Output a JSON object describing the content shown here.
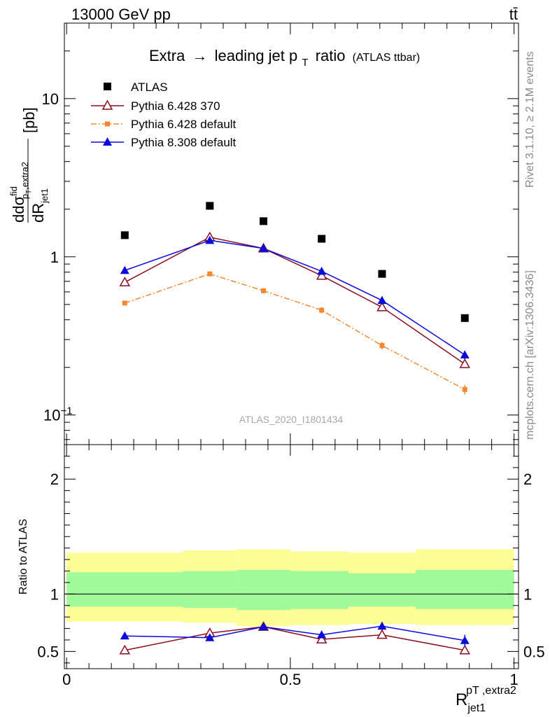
{
  "header": {
    "left": "13000 GeV pp",
    "right": "tt̄"
  },
  "side_labels": {
    "top": "Rivet 3.1.10, ≥ 2.1M events",
    "bottom": "mcplots.cern.ch [arXiv:1306.3436]"
  },
  "watermark": "ATLAS_2020_I1801434",
  "chart_data": [
    {
      "type": "scatter",
      "title": "Extra → leading jet pT ratio",
      "title_parts": {
        "main": "Extra",
        "arrow": "→",
        "mid": "leading jet p",
        "sub": "T",
        "end": "ratio"
      },
      "subtitle": "(ATLAS ttbar)",
      "ylabel_parts": {
        "d1": "d",
        "sigma": "dσ",
        "sup": "fid",
        "sub1": "p",
        "sub2": "T",
        "sub3": ",extra2",
        "denom": "dR",
        "denom_sub": "jet1",
        "unit": "[pb]"
      },
      "yscale": "log",
      "ylim": [
        0.065,
        30
      ],
      "xlim": [
        -0.005,
        1.01
      ],
      "yticks": [
        {
          "v": 10,
          "label": "10"
        },
        {
          "v": 1,
          "label": "1"
        },
        {
          "v": 0.1,
          "label": "10",
          "exp": "−1"
        }
      ],
      "x": [
        0.13,
        0.32,
        0.44,
        0.57,
        0.705,
        0.89
      ],
      "series": [
        {
          "name": "ATLAS",
          "color": "#000000",
          "marker": "square",
          "values": [
            1.37,
            2.1,
            1.68,
            1.3,
            0.78,
            0.41
          ]
        },
        {
          "name": "Pythia 6.428 370",
          "color": "#8b0e1e",
          "marker": "triangle-open",
          "line": "solid",
          "values": [
            0.69,
            1.33,
            1.13,
            0.76,
            0.48,
            0.21
          ],
          "err": [
            0.02,
            0.03,
            0.03,
            0.03,
            0.02,
            0.01
          ]
        },
        {
          "name": "Pythia 6.428 default",
          "color": "#f5872f",
          "marker": "square-small",
          "line": "dashdot",
          "values": [
            0.51,
            0.78,
            0.61,
            0.46,
            0.275,
            0.145
          ],
          "err": [
            0.015,
            0.02,
            0.02,
            0.02,
            0.015,
            0.01
          ]
        },
        {
          "name": "Pythia 8.308 default",
          "color": "#0a0adb",
          "marker": "triangle",
          "line": "solid",
          "values": [
            0.82,
            1.27,
            1.13,
            0.81,
            0.53,
            0.24
          ],
          "err": [
            0.02,
            0.03,
            0.03,
            0.04,
            0.03,
            0.015
          ]
        }
      ]
    },
    {
      "type": "scatter",
      "ylabel": "Ratio to ATLAS",
      "ylim": [
        0.35,
        2.3
      ],
      "xlim": [
        -0.005,
        1.01
      ],
      "yticks": [
        {
          "v": 2,
          "label": "2"
        },
        {
          "v": 1,
          "label": "1"
        },
        {
          "v": 0.5,
          "label": "0.5"
        }
      ],
      "xticks": [
        {
          "v": 0,
          "label": "0"
        },
        {
          "v": 0.5,
          "label": "0.5"
        },
        {
          "v": 1,
          "label": "1"
        }
      ],
      "xlabel_parts": {
        "base": "R",
        "sub": "jet1",
        "sup": "pT ,extra2"
      },
      "bands": [
        {
          "x0": 0.0,
          "x1": 0.26,
          "yellow": [
            0.76,
            1.36
          ],
          "green": [
            0.89,
            1.19
          ]
        },
        {
          "x0": 0.26,
          "x1": 0.38,
          "yellow": [
            0.75,
            1.38
          ],
          "green": [
            0.88,
            1.2
          ]
        },
        {
          "x0": 0.38,
          "x1": 0.5,
          "yellow": [
            0.72,
            1.39
          ],
          "green": [
            0.86,
            1.21
          ]
        },
        {
          "x0": 0.5,
          "x1": 0.63,
          "yellow": [
            0.73,
            1.37
          ],
          "green": [
            0.87,
            1.2
          ]
        },
        {
          "x0": 0.63,
          "x1": 0.78,
          "yellow": [
            0.74,
            1.36
          ],
          "green": [
            0.89,
            1.18
          ]
        },
        {
          "x0": 0.78,
          "x1": 1.0,
          "yellow": [
            0.73,
            1.39
          ],
          "green": [
            0.87,
            1.21
          ]
        }
      ],
      "x": [
        0.13,
        0.32,
        0.44,
        0.57,
        0.705,
        0.89
      ],
      "series": [
        {
          "name": "Pythia 6.428 370",
          "color": "#8b0e1e",
          "marker": "triangle-open",
          "values": [
            0.51,
            0.66,
            0.715,
            0.605,
            0.645,
            0.51
          ],
          "err": [
            0.015,
            0.02,
            0.025,
            0.025,
            0.03,
            0.035
          ]
        },
        {
          "name": "Pythia 8.308 default",
          "color": "#0a0adb",
          "marker": "triangle",
          "values": [
            0.635,
            0.62,
            0.715,
            0.645,
            0.72,
            0.595
          ],
          "err": [
            0.02,
            0.02,
            0.03,
            0.03,
            0.035,
            0.05
          ]
        }
      ]
    }
  ]
}
